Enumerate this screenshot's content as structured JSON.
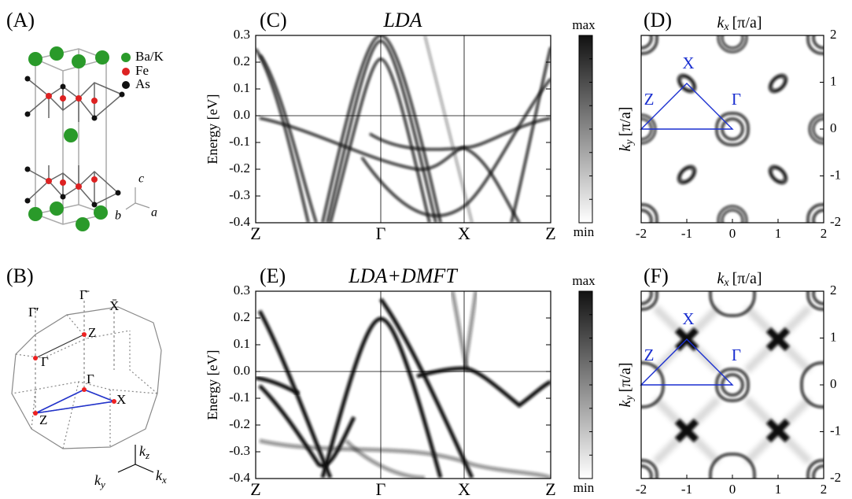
{
  "panels": {
    "a": {
      "label": "(A)",
      "legend": [
        "Ba/K",
        "Fe",
        "As"
      ],
      "axes": [
        "c",
        "b",
        "a"
      ]
    },
    "b": {
      "label": "(B)",
      "points": [
        "Γ̄′",
        "Γ̄",
        "X̄",
        "Z",
        "Γ",
        "Γ",
        "X",
        "Z"
      ],
      "axes": [
        {
          "symbol": "k",
          "subscript": "z"
        },
        {
          "symbol": "k",
          "subscript": "y"
        },
        {
          "symbol": "k",
          "subscript": "x"
        }
      ]
    },
    "c": {
      "label": "(C)",
      "title": "LDA",
      "y_axis_label": "Energy [eV]",
      "yticks": [
        "0.3",
        "0.2",
        "0.1",
        "0.0",
        "-0.1",
        "-0.2",
        "-0.3",
        "-0.4"
      ],
      "xticks": [
        "Z",
        "Γ",
        "X",
        "Z"
      ],
      "colorbar": [
        "max",
        "min"
      ]
    },
    "d": {
      "label": "(D)",
      "x_axis_label": {
        "symbol": "k",
        "subscript": "x",
        "unit": "[π/a]"
      },
      "y_axis_label": {
        "symbol": "k",
        "subscript": "y",
        "unit": "[π/a]"
      },
      "xticks": [
        "-2",
        "-1",
        "0",
        "1",
        "2"
      ],
      "yticks": [
        "2",
        "1",
        "0",
        "-1",
        "-2"
      ],
      "points": [
        "Z",
        "X",
        "Γ"
      ]
    },
    "e": {
      "label": "(E)",
      "title": "LDA+DMFT",
      "y_axis_label": "Energy [eV]",
      "yticks": [
        "0.3",
        "0.2",
        "0.1",
        "0.0",
        "-0.1",
        "-0.2",
        "-0.3",
        "-0.4"
      ],
      "xticks": [
        "Z",
        "Γ",
        "X",
        "Z"
      ],
      "colorbar": [
        "max",
        "min"
      ]
    },
    "f": {
      "label": "(F)",
      "x_axis_label": {
        "symbol": "k",
        "subscript": "x",
        "unit": "[π/a]"
      },
      "y_axis_label": {
        "symbol": "k",
        "subscript": "y",
        "unit": "[π/a]"
      },
      "xticks": [
        "-2",
        "-1",
        "0",
        "1",
        "2"
      ],
      "yticks": [
        "2",
        "1",
        "0",
        "-1",
        "-2"
      ],
      "points": [
        "Z",
        "X",
        "Γ"
      ]
    }
  }
}
